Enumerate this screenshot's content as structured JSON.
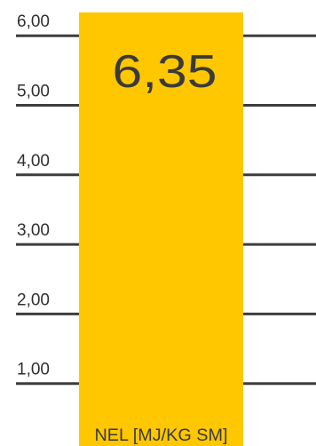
{
  "chart_data": {
    "type": "bar",
    "categories": [
      "NEL [MJ/KG SM]"
    ],
    "values": [
      6.35
    ],
    "value_label": "6,35",
    "yticks": [
      1,
      2,
      3,
      4,
      5,
      6
    ],
    "ytick_labels": [
      "1,00",
      "2,00",
      "3,00",
      "4,00",
      "5,00",
      "6,00"
    ],
    "ylim": [
      0,
      6
    ],
    "grid": true,
    "bar_color": "#FFC700",
    "grid_color": "#3D3D3D"
  }
}
